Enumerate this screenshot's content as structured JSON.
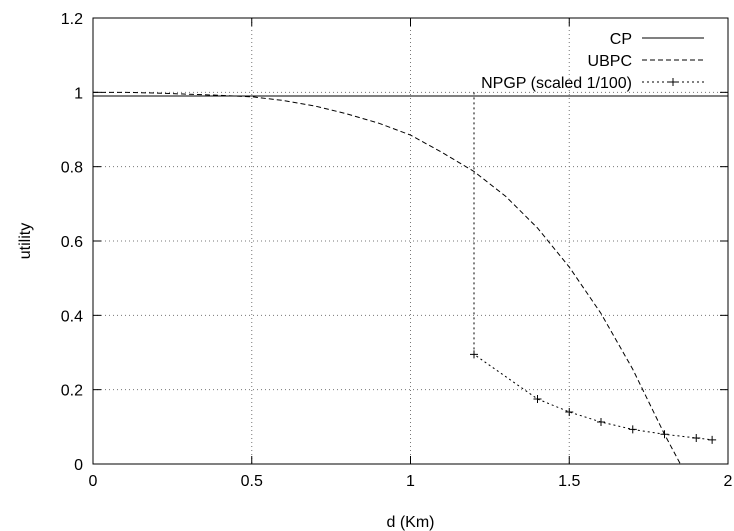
{
  "chart_data": {
    "type": "line",
    "title": "",
    "xlabel": "d (Km)",
    "ylabel": "utility",
    "xlim": [
      0,
      2
    ],
    "ylim": [
      0,
      1.2
    ],
    "x_ticks": [
      0,
      0.5,
      1,
      1.5,
      2
    ],
    "y_ticks": [
      0,
      0.2,
      0.4,
      0.6,
      0.8,
      1,
      1.2
    ],
    "x_tick_labels": [
      "0",
      "0.5",
      "1",
      "1.5",
      "2"
    ],
    "y_tick_labels": [
      "0",
      "0.2",
      "0.4",
      "0.6",
      "0.8",
      "1",
      "1.2"
    ],
    "grid": true,
    "legend_position": "top-right",
    "series": [
      {
        "name": "CP",
        "style": "solid",
        "markers": false,
        "x": [
          0,
          2
        ],
        "y": [
          0.99,
          0.99
        ]
      },
      {
        "name": "UBPC",
        "style": "dashed",
        "markers": false,
        "x": [
          0,
          0.1,
          0.2,
          0.3,
          0.4,
          0.5,
          0.6,
          0.7,
          0.8,
          0.9,
          1.0,
          1.1,
          1.2,
          1.3,
          1.4,
          1.5,
          1.6,
          1.7,
          1.8,
          1.85
        ],
        "y": [
          1.0,
          1.0,
          0.998,
          0.995,
          0.992,
          0.988,
          0.978,
          0.963,
          0.942,
          0.917,
          0.885,
          0.838,
          0.787,
          0.72,
          0.635,
          0.53,
          0.405,
          0.255,
          0.08,
          0.0
        ]
      },
      {
        "name": "NPGP (scaled 1/100)",
        "style": "dotted",
        "markers": true,
        "x": [
          1.2,
          1.2,
          1.4,
          1.5,
          1.6,
          1.7,
          1.8,
          1.9,
          1.95
        ],
        "y": [
          1.0,
          0.295,
          0.175,
          0.14,
          0.113,
          0.093,
          0.08,
          0.07,
          0.065
        ],
        "marker_points": [
          [
            1.2,
            0.295
          ],
          [
            1.4,
            0.175
          ],
          [
            1.5,
            0.14
          ],
          [
            1.6,
            0.113
          ],
          [
            1.7,
            0.093
          ],
          [
            1.8,
            0.08
          ],
          [
            1.9,
            0.07
          ],
          [
            1.95,
            0.065
          ]
        ]
      }
    ]
  }
}
